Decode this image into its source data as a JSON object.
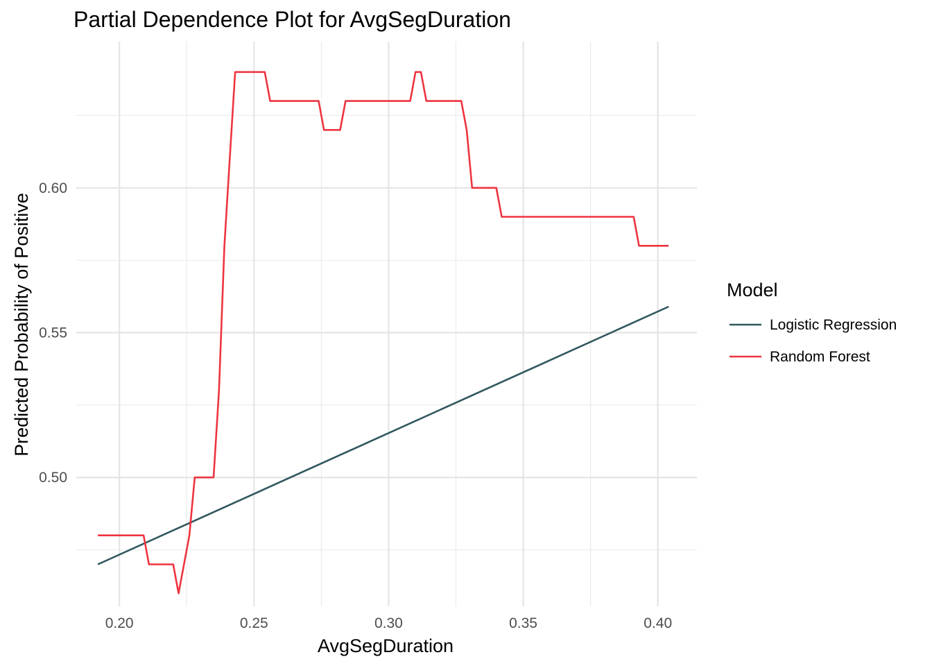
{
  "chart_data": {
    "type": "line",
    "title": "Partial Dependence Plot for AvgSegDuration",
    "xlabel": "AvgSegDuration",
    "ylabel": "Predicted Probability of Positive",
    "xlim": [
      0.184,
      0.4145
    ],
    "ylim": [
      0.4555,
      0.6505
    ],
    "x_ticks": [
      0.2,
      0.25,
      0.3,
      0.35,
      0.4
    ],
    "x_tick_labels": [
      "0.20",
      "0.25",
      "0.30",
      "0.35",
      "0.40"
    ],
    "y_ticks": [
      0.5,
      0.55,
      0.6
    ],
    "y_tick_labels": [
      "0.50",
      "0.55",
      "0.60"
    ],
    "grid": true,
    "legend": {
      "title": "Model",
      "position": "right"
    },
    "series": [
      {
        "name": "Logistic Regression",
        "color": "#2f575d",
        "x": [
          0.192,
          0.404
        ],
        "y": [
          0.47,
          0.559
        ]
      },
      {
        "name": "Random Forest",
        "color": "#ee3440",
        "x": [
          0.192,
          0.209,
          0.211,
          0.22,
          0.222,
          0.226,
          0.228,
          0.235,
          0.237,
          0.239,
          0.241,
          0.243,
          0.254,
          0.256,
          0.274,
          0.276,
          0.282,
          0.284,
          0.308,
          0.31,
          0.312,
          0.314,
          0.327,
          0.329,
          0.331,
          0.34,
          0.342,
          0.391,
          0.393,
          0.404
        ],
        "y": [
          0.48,
          0.48,
          0.47,
          0.47,
          0.46,
          0.48,
          0.5,
          0.5,
          0.53,
          0.58,
          0.61,
          0.64,
          0.64,
          0.63,
          0.63,
          0.62,
          0.62,
          0.63,
          0.63,
          0.64,
          0.64,
          0.63,
          0.63,
          0.62,
          0.6,
          0.6,
          0.59,
          0.59,
          0.58,
          0.58
        ]
      }
    ]
  }
}
